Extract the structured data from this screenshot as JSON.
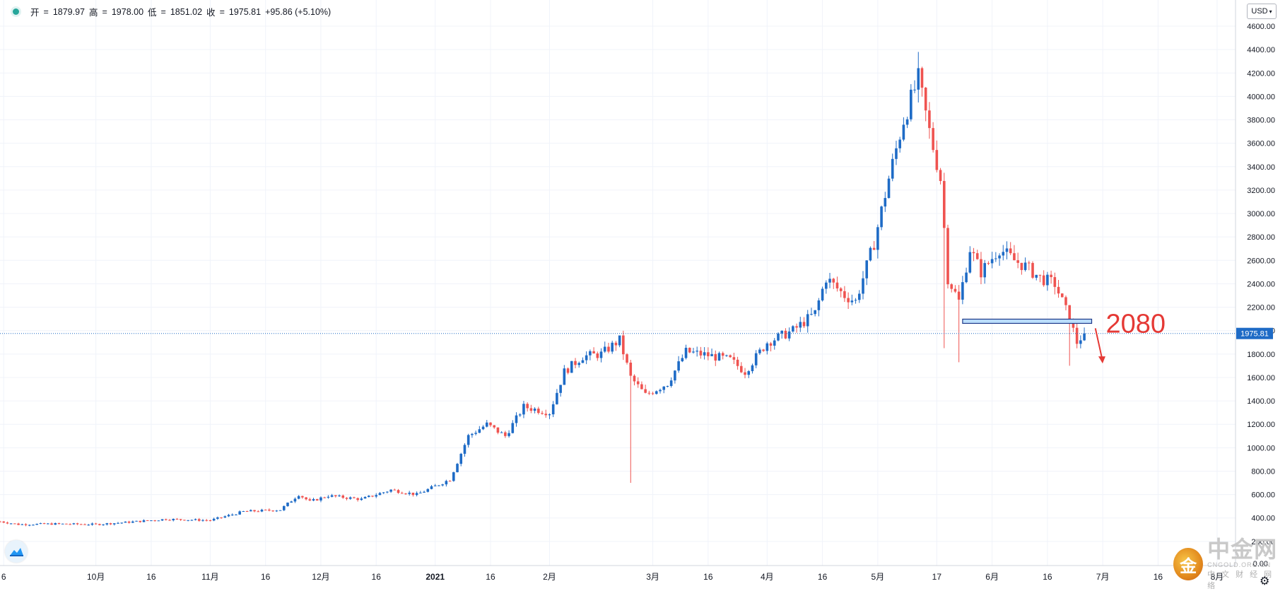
{
  "ohlc": {
    "open_label": "开",
    "open": "1879.97",
    "high_label": "高",
    "high": "1978.00",
    "low_label": "低",
    "low": "1851.02",
    "close_label": "收",
    "close": "1975.81",
    "change": "+95.86 (+5.10%)"
  },
  "currency_button": "USD",
  "watermark": {
    "logo_char": "金",
    "name": "中金网",
    "domain": "CNGOLD.ORG.CN",
    "tagline": "中文财经网络"
  },
  "colors": {
    "up": "#1e6bc6",
    "down": "#ef5350",
    "price_line": "#1e6bc6",
    "annotation": "#e53935",
    "grid": "#f0f3fa"
  },
  "chart_data": {
    "type": "candlestick",
    "ylim": [
      0,
      4700
    ],
    "y_ticks": [
      200,
      400,
      600,
      800,
      1000,
      1200,
      1400,
      1600,
      1800,
      2000,
      2200,
      2400,
      2600,
      2800,
      3000,
      3200,
      3400,
      3600,
      3800,
      4000,
      4200,
      4400,
      4600
    ],
    "y_tick_labels": [
      "200.00",
      "400.00",
      "600.00",
      "800.00",
      "1000.00",
      "1200.00",
      "1400.00",
      "1600.00",
      "1800.00",
      "2000.00",
      "2200.00",
      "2400.00",
      "2600.00",
      "2800.00",
      "3000.00",
      "3200.00",
      "3400.00",
      "3600.00",
      "3800.00",
      "4000.00",
      "4200.00",
      "4400.00",
      "4600.00"
    ],
    "zero_label": "0.00",
    "x_ticks": [
      {
        "label": "6",
        "date": "2020-09-06"
      },
      {
        "label": "10月",
        "date": "2020-10-01"
      },
      {
        "label": "16",
        "date": "2020-10-16"
      },
      {
        "label": "11月",
        "date": "2020-11-01"
      },
      {
        "label": "16",
        "date": "2020-11-16"
      },
      {
        "label": "12月",
        "date": "2020-12-01"
      },
      {
        "label": "16",
        "date": "2020-12-16"
      },
      {
        "label": "2021",
        "date": "2021-01-01"
      },
      {
        "label": "16",
        "date": "2021-01-16"
      },
      {
        "label": "2月",
        "date": "2021-02-01"
      },
      {
        "label": "3月",
        "date": "2021-03-01"
      },
      {
        "label": "16",
        "date": "2021-03-16"
      },
      {
        "label": "4月",
        "date": "2021-04-01"
      },
      {
        "label": "16",
        "date": "2021-04-16"
      },
      {
        "label": "5月",
        "date": "2021-05-01"
      },
      {
        "label": "17",
        "date": "2021-05-17"
      },
      {
        "label": "6月",
        "date": "2021-06-01"
      },
      {
        "label": "16",
        "date": "2021-06-16"
      },
      {
        "label": "7月",
        "date": "2021-07-01"
      },
      {
        "label": "16",
        "date": "2021-07-16"
      },
      {
        "label": "8月",
        "date": "2021-08-01"
      }
    ],
    "x_range": [
      "2020-09-05",
      "2021-08-06"
    ],
    "last_price": 1975.81,
    "last_price_label": "1975.81",
    "annotation": {
      "level": 2080,
      "label": "2080",
      "box_from": "2021-05-24",
      "box_to": "2021-06-28"
    },
    "arrow": {
      "from_date": "2021-06-29",
      "from_value": 2020,
      "to_date": "2021-06-30",
      "to_value": 1720
    },
    "anchors": [
      [
        "2020-09-05",
        370
      ],
      [
        "2020-09-10",
        345
      ],
      [
        "2020-09-20",
        350
      ],
      [
        "2020-10-01",
        345
      ],
      [
        "2020-10-10",
        365
      ],
      [
        "2020-10-20",
        390
      ],
      [
        "2020-11-01",
        380
      ],
      [
        "2020-11-10",
        455
      ],
      [
        "2020-11-20",
        470
      ],
      [
        "2020-11-25",
        600
      ],
      [
        "2020-11-28",
        540
      ],
      [
        "2020-12-03",
        590
      ],
      [
        "2020-12-12",
        560
      ],
      [
        "2020-12-20",
        640
      ],
      [
        "2020-12-27",
        600
      ],
      [
        "2021-01-05",
        730
      ],
      [
        "2021-01-10",
        1100
      ],
      [
        "2021-01-15",
        1200
      ],
      [
        "2021-01-20",
        1100
      ],
      [
        "2021-01-25",
        1350
      ],
      [
        "2021-02-01",
        1300
      ],
      [
        "2021-02-05",
        1650
      ],
      [
        "2021-02-10",
        1780
      ],
      [
        "2021-02-15",
        1800
      ],
      [
        "2021-02-20",
        1920
      ],
      [
        "2021-02-23",
        1600
      ],
      [
        "2021-02-27",
        1450
      ],
      [
        "2021-03-05",
        1550
      ],
      [
        "2021-03-10",
        1820
      ],
      [
        "2021-03-16",
        1790
      ],
      [
        "2021-03-22",
        1750
      ],
      [
        "2021-03-26",
        1650
      ],
      [
        "2021-04-01",
        1900
      ],
      [
        "2021-04-08",
        2000
      ],
      [
        "2021-04-14",
        2150
      ],
      [
        "2021-04-17",
        2450
      ],
      [
        "2021-04-22",
        2300
      ],
      [
        "2021-04-25",
        2250
      ],
      [
        "2021-04-30",
        2750
      ],
      [
        "2021-05-04",
        3300
      ],
      [
        "2021-05-08",
        3800
      ],
      [
        "2021-05-12",
        4150
      ],
      [
        "2021-05-15",
        3700
      ],
      [
        "2021-05-18",
        3300
      ],
      [
        "2021-05-20",
        2450
      ],
      [
        "2021-05-23",
        2250
      ],
      [
        "2021-05-26",
        2700
      ],
      [
        "2021-05-29",
        2500
      ],
      [
        "2021-06-03",
        2700
      ],
      [
        "2021-06-07",
        2600
      ],
      [
        "2021-06-10",
        2550
      ],
      [
        "2021-06-14",
        2450
      ],
      [
        "2021-06-18",
        2400
      ],
      [
        "2021-06-22",
        2100
      ],
      [
        "2021-06-24",
        1900
      ],
      [
        "2021-06-26",
        1975.81
      ]
    ],
    "spikes": [
      {
        "date": "2021-02-23",
        "low": 700
      },
      {
        "date": "2021-05-19",
        "low": 1850
      },
      {
        "date": "2021-05-23",
        "low": 1730
      },
      {
        "date": "2021-05-12",
        "high": 4380
      },
      {
        "date": "2021-06-22",
        "low": 1700
      }
    ]
  }
}
